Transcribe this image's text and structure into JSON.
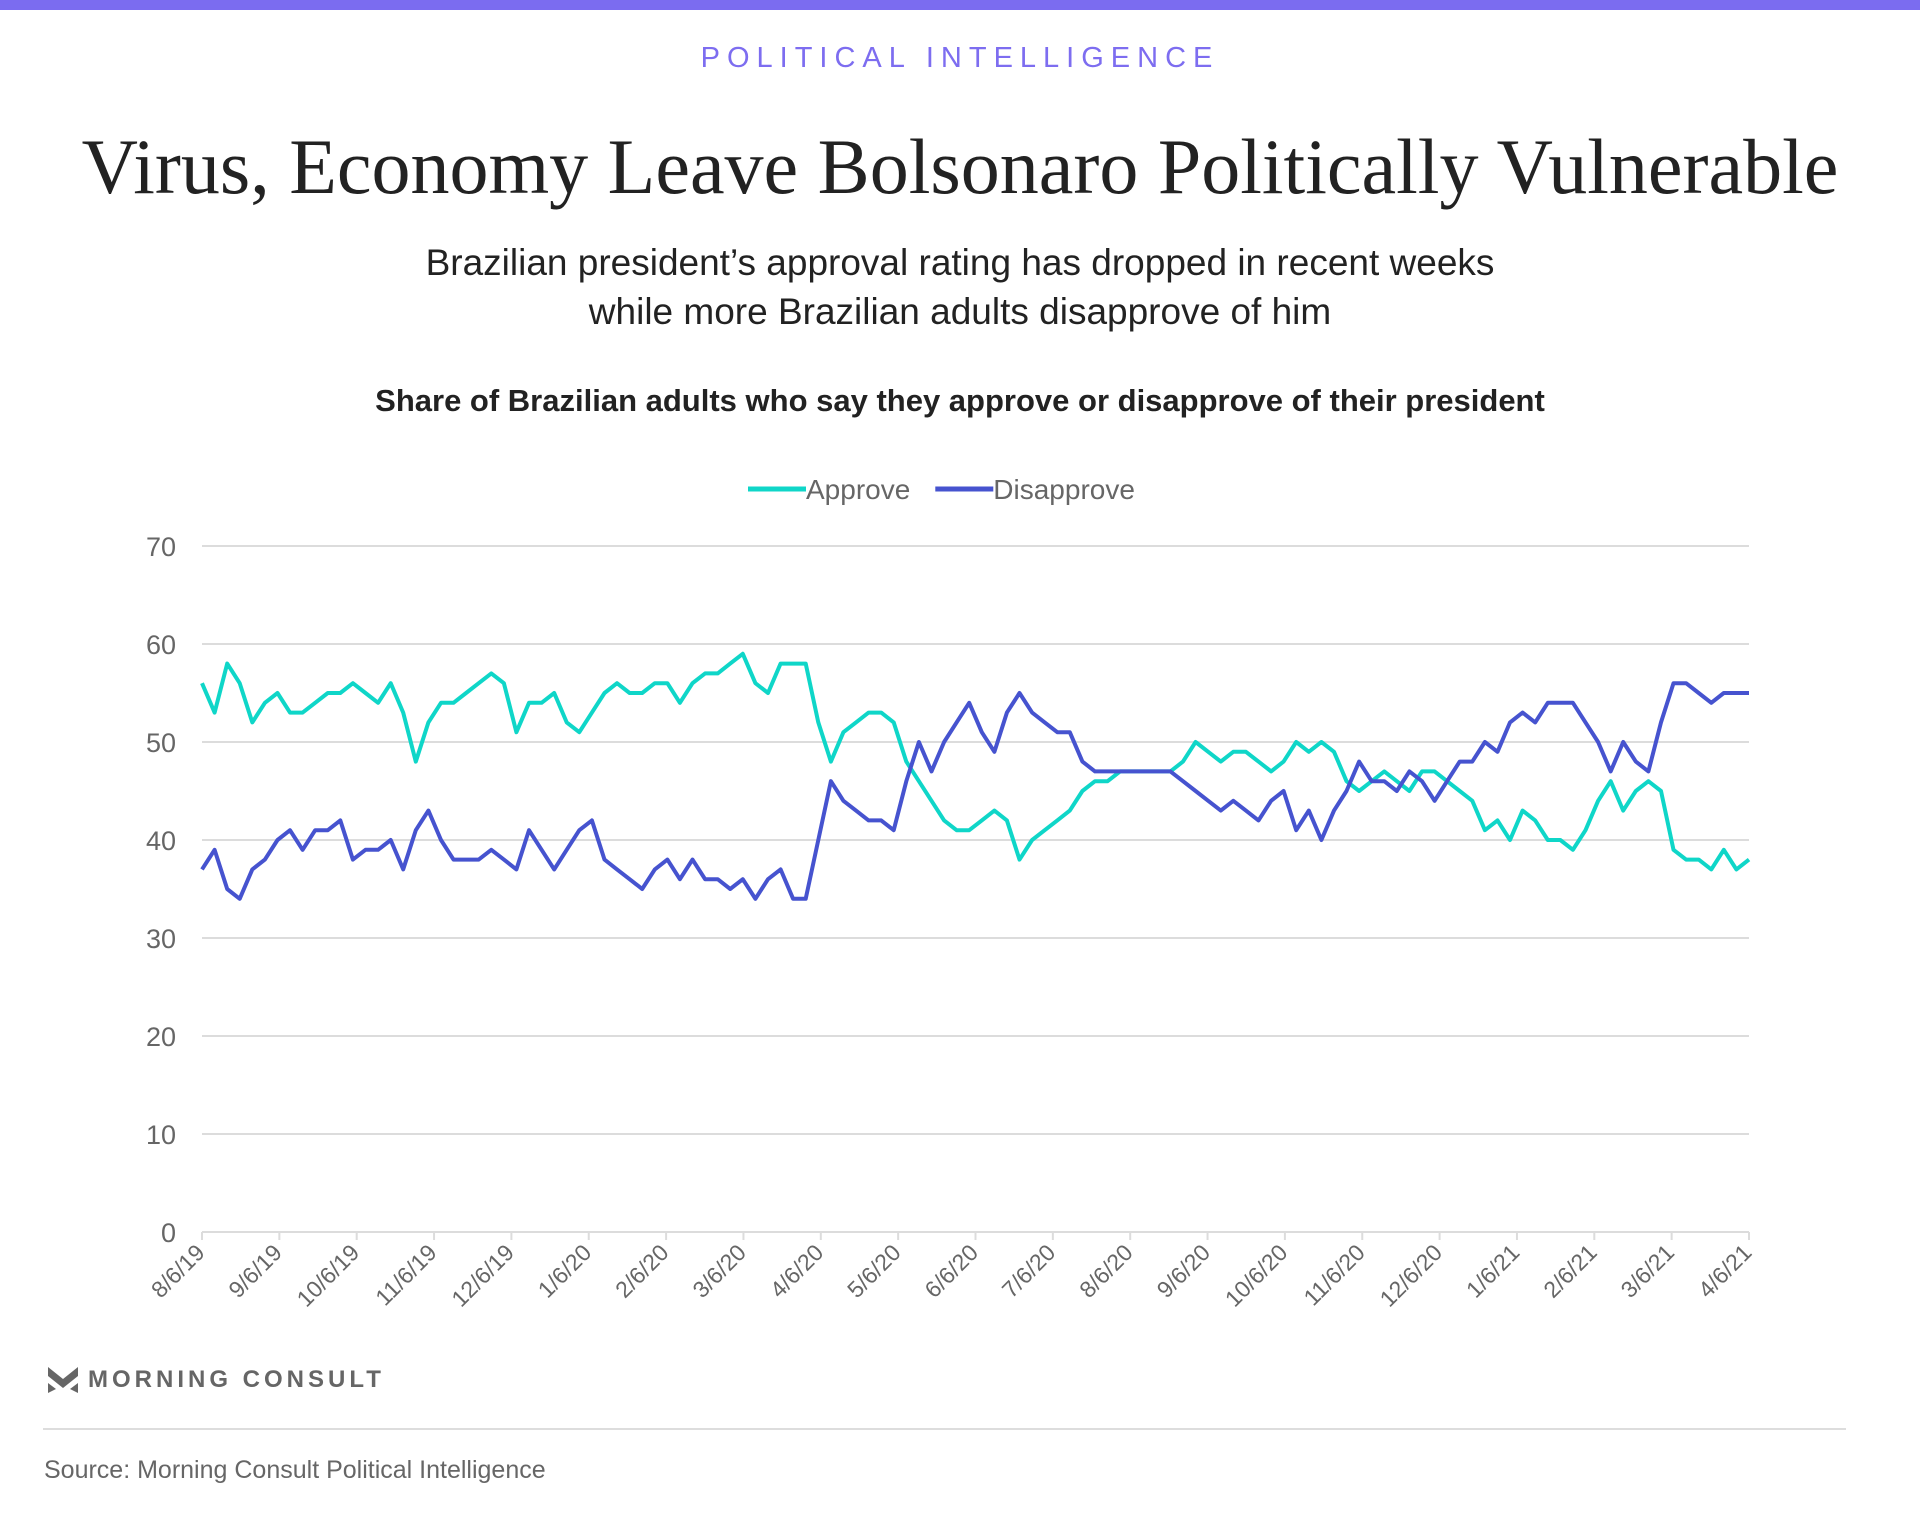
{
  "header": {
    "kicker": "POLITICAL INTELLIGENCE",
    "title": "Virus, Economy Leave Bolsonaro Politically Vulnerable",
    "subtitle_line1": "Brazilian president’s approval rating has dropped in recent weeks",
    "subtitle_line2": "while more Brazilian adults disapprove of him"
  },
  "chart_data": {
    "type": "line",
    "title": "Share of Brazilian adults who say they approve or disapprove of their president",
    "xlabel": "",
    "ylabel": "",
    "ylim": [
      0,
      70
    ],
    "yticks": [
      "0",
      "10",
      "20",
      "30",
      "40",
      "50",
      "60",
      "70"
    ],
    "xticks": [
      "8/6/19",
      "9/6/19",
      "10/6/19",
      "11/6/19",
      "12/6/19",
      "1/6/20",
      "2/6/20",
      "3/6/20",
      "4/6/20",
      "5/6/20",
      "6/6/20",
      "7/6/20",
      "8/6/20",
      "9/6/20",
      "10/6/20",
      "11/6/20",
      "12/6/20",
      "1/6/21",
      "2/6/21",
      "3/6/21",
      "4/6/21"
    ],
    "x_range": [
      "8/6/19",
      "4/6/21"
    ],
    "grid": true,
    "legend_position": "top-center",
    "series": [
      {
        "name": "Approve",
        "color": "#0fd6c8",
        "values": [
          56,
          53,
          58,
          56,
          52,
          54,
          55,
          53,
          53,
          54,
          55,
          55,
          56,
          55,
          54,
          56,
          53,
          48,
          52,
          54,
          54,
          55,
          56,
          57,
          56,
          51,
          54,
          54,
          55,
          52,
          51,
          53,
          55,
          56,
          55,
          55,
          56,
          56,
          54,
          56,
          57,
          57,
          58,
          59,
          56,
          55,
          58,
          58,
          58,
          52,
          48,
          51,
          52,
          53,
          53,
          52,
          48,
          46,
          44,
          42,
          41,
          41,
          42,
          43,
          42,
          38,
          40,
          41,
          42,
          43,
          45,
          46,
          46,
          47,
          47,
          47,
          47,
          47,
          48,
          50,
          49,
          48,
          49,
          49,
          48,
          47,
          48,
          50,
          49,
          50,
          49,
          46,
          45,
          46,
          47,
          46,
          45,
          47,
          47,
          46,
          45,
          44,
          41,
          42,
          40,
          43,
          42,
          40,
          40,
          39,
          41,
          44,
          46,
          43,
          45,
          46,
          45,
          39,
          38,
          38,
          37,
          39,
          37,
          38
        ]
      },
      {
        "name": "Disapprove",
        "color": "#4653cf",
        "values": [
          37,
          39,
          35,
          34,
          37,
          38,
          40,
          41,
          39,
          41,
          41,
          42,
          38,
          39,
          39,
          40,
          37,
          41,
          43,
          40,
          38,
          38,
          38,
          39,
          38,
          37,
          41,
          39,
          37,
          39,
          41,
          42,
          38,
          37,
          36,
          35,
          37,
          38,
          36,
          38,
          36,
          36,
          35,
          36,
          34,
          36,
          37,
          34,
          34,
          40,
          46,
          44,
          43,
          42,
          42,
          41,
          46,
          50,
          47,
          50,
          52,
          54,
          51,
          49,
          53,
          55,
          53,
          52,
          51,
          51,
          48,
          47,
          47,
          47,
          47,
          47,
          47,
          47,
          46,
          45,
          44,
          43,
          44,
          43,
          42,
          44,
          45,
          41,
          43,
          40,
          43,
          45,
          48,
          46,
          46,
          45,
          47,
          46,
          44,
          46,
          48,
          48,
          50,
          49,
          52,
          53,
          52,
          54,
          54,
          54,
          52,
          50,
          47,
          50,
          48,
          47,
          52,
          56,
          56,
          55,
          54,
          55,
          55,
          55
        ]
      }
    ]
  },
  "footer": {
    "logo_text": "MORNING CONSULT",
    "source": "Source: Morning Consult Political Intelligence"
  }
}
